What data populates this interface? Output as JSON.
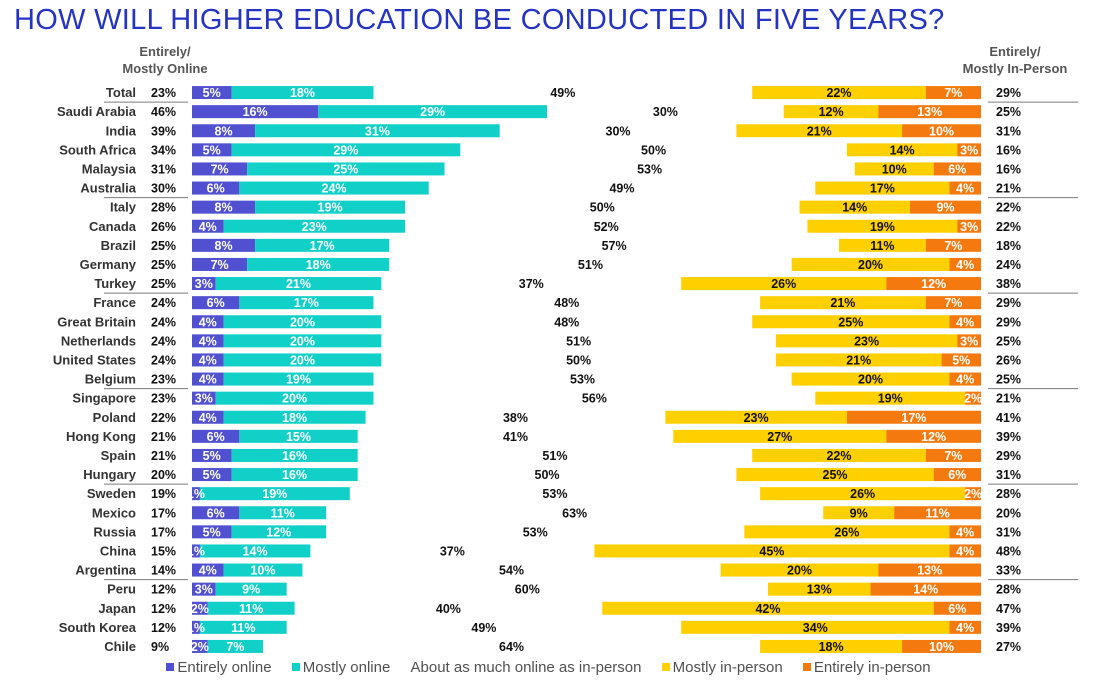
{
  "title": "HOW WILL HIGHER EDUCATION BE CONDUCTED IN FIVE YEARS?",
  "headers": {
    "online": [
      "Entirely/",
      "Mostly Online"
    ],
    "inperson": [
      "Entirely/",
      "Mostly In-Person"
    ]
  },
  "colors": {
    "entirely_online": "#5050d0",
    "mostly_online": "#10d0c8",
    "mostly_inperson": "#ffd000",
    "entirely_inperson": "#f47a10"
  },
  "legend": [
    {
      "label": "Entirely online",
      "color": "#5050d0"
    },
    {
      "label": "Mostly online",
      "color": "#10d0c8"
    },
    {
      "label": "About as much online as in-person",
      "color": ""
    },
    {
      "label": "Mostly in-person",
      "color": "#ffd000"
    },
    {
      "label": "Entirely in-person",
      "color": "#f47a10"
    }
  ],
  "chart_data": {
    "type": "bar",
    "orientation": "horizontal-diverging",
    "series_names": [
      "Entirely online",
      "Mostly online",
      "About as much online as in-person",
      "Mostly in-person",
      "Entirely in-person"
    ],
    "groups": [
      [
        0
      ],
      [
        1,
        2,
        3,
        4,
        5
      ],
      [
        6,
        7,
        8,
        9,
        10
      ],
      [
        11,
        12,
        13,
        14,
        15
      ],
      [
        16,
        17,
        18,
        19,
        20
      ],
      [
        21,
        22,
        23,
        24,
        25
      ],
      [
        26,
        27,
        28,
        29
      ]
    ],
    "rows": [
      {
        "country": "Total",
        "online_total": "23%",
        "eo": 5,
        "mo": 18,
        "mid": 49,
        "mi": 22,
        "ei": 7,
        "inperson_total": "29%"
      },
      {
        "country": "Saudi Arabia",
        "online_total": "46%",
        "eo": 16,
        "mo": 29,
        "mid": 30,
        "mi": 12,
        "ei": 13,
        "inperson_total": "25%"
      },
      {
        "country": "India",
        "online_total": "39%",
        "eo": 8,
        "mo": 31,
        "mid": 30,
        "mi": 21,
        "ei": 10,
        "inperson_total": "31%"
      },
      {
        "country": "South Africa",
        "online_total": "34%",
        "eo": 5,
        "mo": 29,
        "mid": 50,
        "mi": 14,
        "ei": 3,
        "inperson_total": "16%"
      },
      {
        "country": "Malaysia",
        "online_total": "31%",
        "eo": 7,
        "mo": 25,
        "mid": 53,
        "mi": 10,
        "ei": 6,
        "inperson_total": "16%"
      },
      {
        "country": "Australia",
        "online_total": "30%",
        "eo": 6,
        "mo": 24,
        "mid": 49,
        "mi": 17,
        "ei": 4,
        "inperson_total": "21%"
      },
      {
        "country": "Italy",
        "online_total": "28%",
        "eo": 8,
        "mo": 19,
        "mid": 50,
        "mi": 14,
        "ei": 9,
        "inperson_total": "22%"
      },
      {
        "country": "Canada",
        "online_total": "26%",
        "eo": 4,
        "mo": 23,
        "mid": 52,
        "mi": 19,
        "ei": 3,
        "inperson_total": "22%"
      },
      {
        "country": "Brazil",
        "online_total": "25%",
        "eo": 8,
        "mo": 17,
        "mid": 57,
        "mi": 11,
        "ei": 7,
        "inperson_total": "18%"
      },
      {
        "country": "Germany",
        "online_total": "25%",
        "eo": 7,
        "mo": 18,
        "mid": 51,
        "mi": 20,
        "ei": 4,
        "inperson_total": "24%"
      },
      {
        "country": "Turkey",
        "online_total": "25%",
        "eo": 3,
        "mo": 21,
        "mid": 37,
        "mi": 26,
        "ei": 12,
        "inperson_total": "38%"
      },
      {
        "country": "France",
        "online_total": "24%",
        "eo": 6,
        "mo": 17,
        "mid": 48,
        "mi": 21,
        "ei": 7,
        "inperson_total": "29%"
      },
      {
        "country": "Great Britain",
        "online_total": "24%",
        "eo": 4,
        "mo": 20,
        "mid": 48,
        "mi": 25,
        "ei": 4,
        "inperson_total": "29%"
      },
      {
        "country": "Netherlands",
        "online_total": "24%",
        "eo": 4,
        "mo": 20,
        "mid": 51,
        "mi": 23,
        "ei": 3,
        "inperson_total": "25%"
      },
      {
        "country": "United States",
        "online_total": "24%",
        "eo": 4,
        "mo": 20,
        "mid": 50,
        "mi": 21,
        "ei": 5,
        "inperson_total": "26%"
      },
      {
        "country": "Belgium",
        "online_total": "23%",
        "eo": 4,
        "mo": 19,
        "mid": 53,
        "mi": 20,
        "ei": 4,
        "inperson_total": "25%"
      },
      {
        "country": "Singapore",
        "online_total": "23%",
        "eo": 3,
        "mo": 20,
        "mid": 56,
        "mi": 19,
        "ei": 2,
        "inperson_total": "21%"
      },
      {
        "country": "Poland",
        "online_total": "22%",
        "eo": 4,
        "mo": 18,
        "mid": 38,
        "mi": 23,
        "ei": 17,
        "inperson_total": "41%"
      },
      {
        "country": "Hong Kong",
        "online_total": "21%",
        "eo": 6,
        "mo": 15,
        "mid": 41,
        "mi": 27,
        "ei": 12,
        "inperson_total": "39%"
      },
      {
        "country": "Spain",
        "online_total": "21%",
        "eo": 5,
        "mo": 16,
        "mid": 51,
        "mi": 22,
        "ei": 7,
        "inperson_total": "29%"
      },
      {
        "country": "Hungary",
        "online_total": "20%",
        "eo": 5,
        "mo": 16,
        "mid": 50,
        "mi": 25,
        "ei": 6,
        "inperson_total": "31%"
      },
      {
        "country": "Sweden",
        "online_total": "19%",
        "eo": 1,
        "mo": 19,
        "mid": 53,
        "mi": 26,
        "ei": 2,
        "inperson_total": "28%"
      },
      {
        "country": "Mexico",
        "online_total": "17%",
        "eo": 6,
        "mo": 11,
        "mid": 63,
        "mi": 9,
        "ei": 11,
        "inperson_total": "20%"
      },
      {
        "country": "Russia",
        "online_total": "17%",
        "eo": 5,
        "mo": 12,
        "mid": 53,
        "mi": 26,
        "ei": 4,
        "inperson_total": "31%"
      },
      {
        "country": "China",
        "online_total": "15%",
        "eo": 1,
        "mo": 14,
        "mid": 37,
        "mi": 45,
        "ei": 4,
        "inperson_total": "48%"
      },
      {
        "country": "Argentina",
        "online_total": "14%",
        "eo": 4,
        "mo": 10,
        "mid": 54,
        "mi": 20,
        "ei": 13,
        "inperson_total": "33%"
      },
      {
        "country": "Peru",
        "online_total": "12%",
        "eo": 3,
        "mo": 9,
        "mid": 60,
        "mi": 13,
        "ei": 14,
        "inperson_total": "28%"
      },
      {
        "country": "Japan",
        "online_total": "12%",
        "eo": 2,
        "mo": 11,
        "mid": 40,
        "mi": 42,
        "ei": 6,
        "inperson_total": "47%"
      },
      {
        "country": "South Korea",
        "online_total": "12%",
        "eo": 1,
        "mo": 11,
        "mid": 49,
        "mi": 34,
        "ei": 4,
        "inperson_total": "39%"
      },
      {
        "country": "Chile",
        "online_total": "9%",
        "eo": 2,
        "mo": 7,
        "mid": 64,
        "mi": 18,
        "ei": 10,
        "inperson_total": "27%"
      }
    ]
  }
}
